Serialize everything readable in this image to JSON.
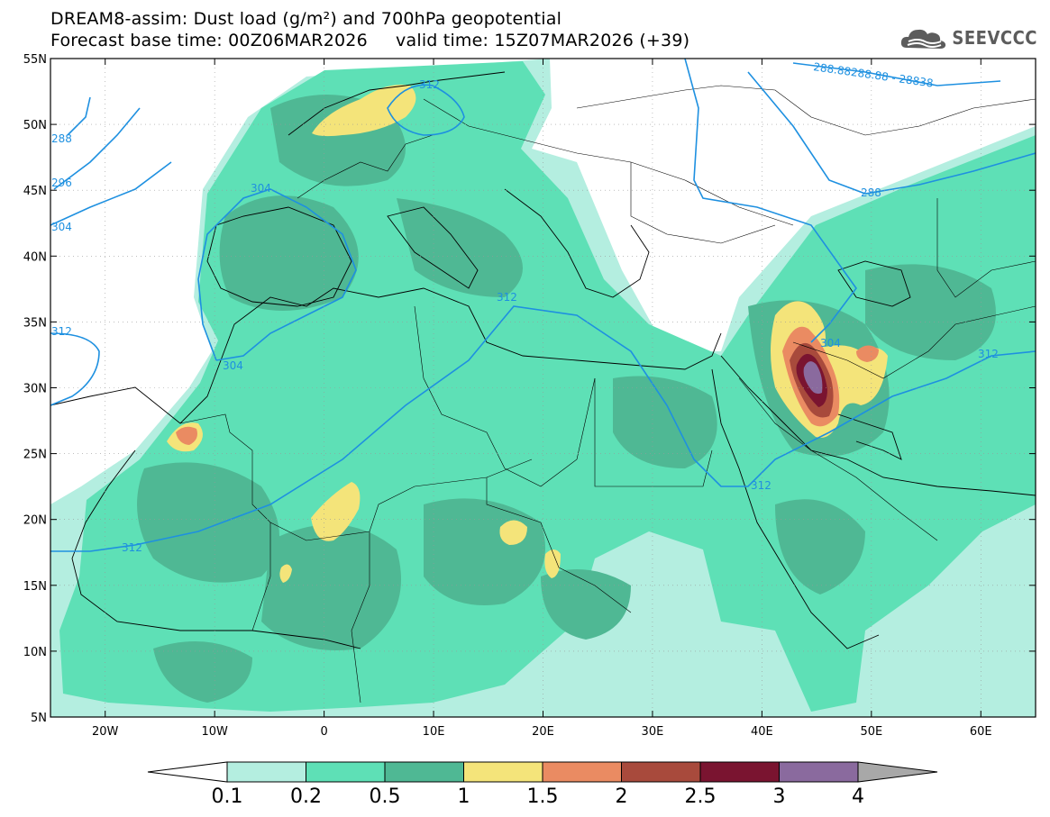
{
  "header": {
    "title_line1": "DREAM8-assim: Dust load (g/m²) and 700hPa geopotential",
    "title_line2": "Forecast base time: 00Z06MAR2026     valid time: 15Z07MAR2026 (+39)"
  },
  "logo": {
    "text": "SEEVCCC",
    "icon": "cloud-icon",
    "color": "#5c5c5c"
  },
  "map": {
    "lon_range": [
      -25,
      65
    ],
    "lat_range": [
      5,
      55
    ],
    "lat_ticks": [
      "55N",
      "50N",
      "45N",
      "40N",
      "35N",
      "30N",
      "25N",
      "20N",
      "15N",
      "10N",
      "5N"
    ],
    "lon_ticks": [
      "20W",
      "10W",
      "0",
      "10E",
      "20E",
      "30E",
      "40E",
      "50E",
      "60E"
    ],
    "contour_labels": [
      "312",
      "304",
      "312",
      "304",
      "312",
      "312",
      "304",
      "312",
      "312",
      "288",
      "296",
      "304",
      "288.88288.88 - 28838",
      "288"
    ],
    "contour_color": "#1e90e0"
  },
  "legend": {
    "labels": [
      "0.1",
      "0.2",
      "0.5",
      "1",
      "1.5",
      "2",
      "2.5",
      "3",
      "4"
    ],
    "colors": [
      "#ffffff",
      "#b4eee0",
      "#5ee0b6",
      "#4fb894",
      "#f4e47a",
      "#ea8b62",
      "#a84a3c",
      "#7a1430",
      "#8a6a9e",
      "#a8a8a8"
    ]
  }
}
